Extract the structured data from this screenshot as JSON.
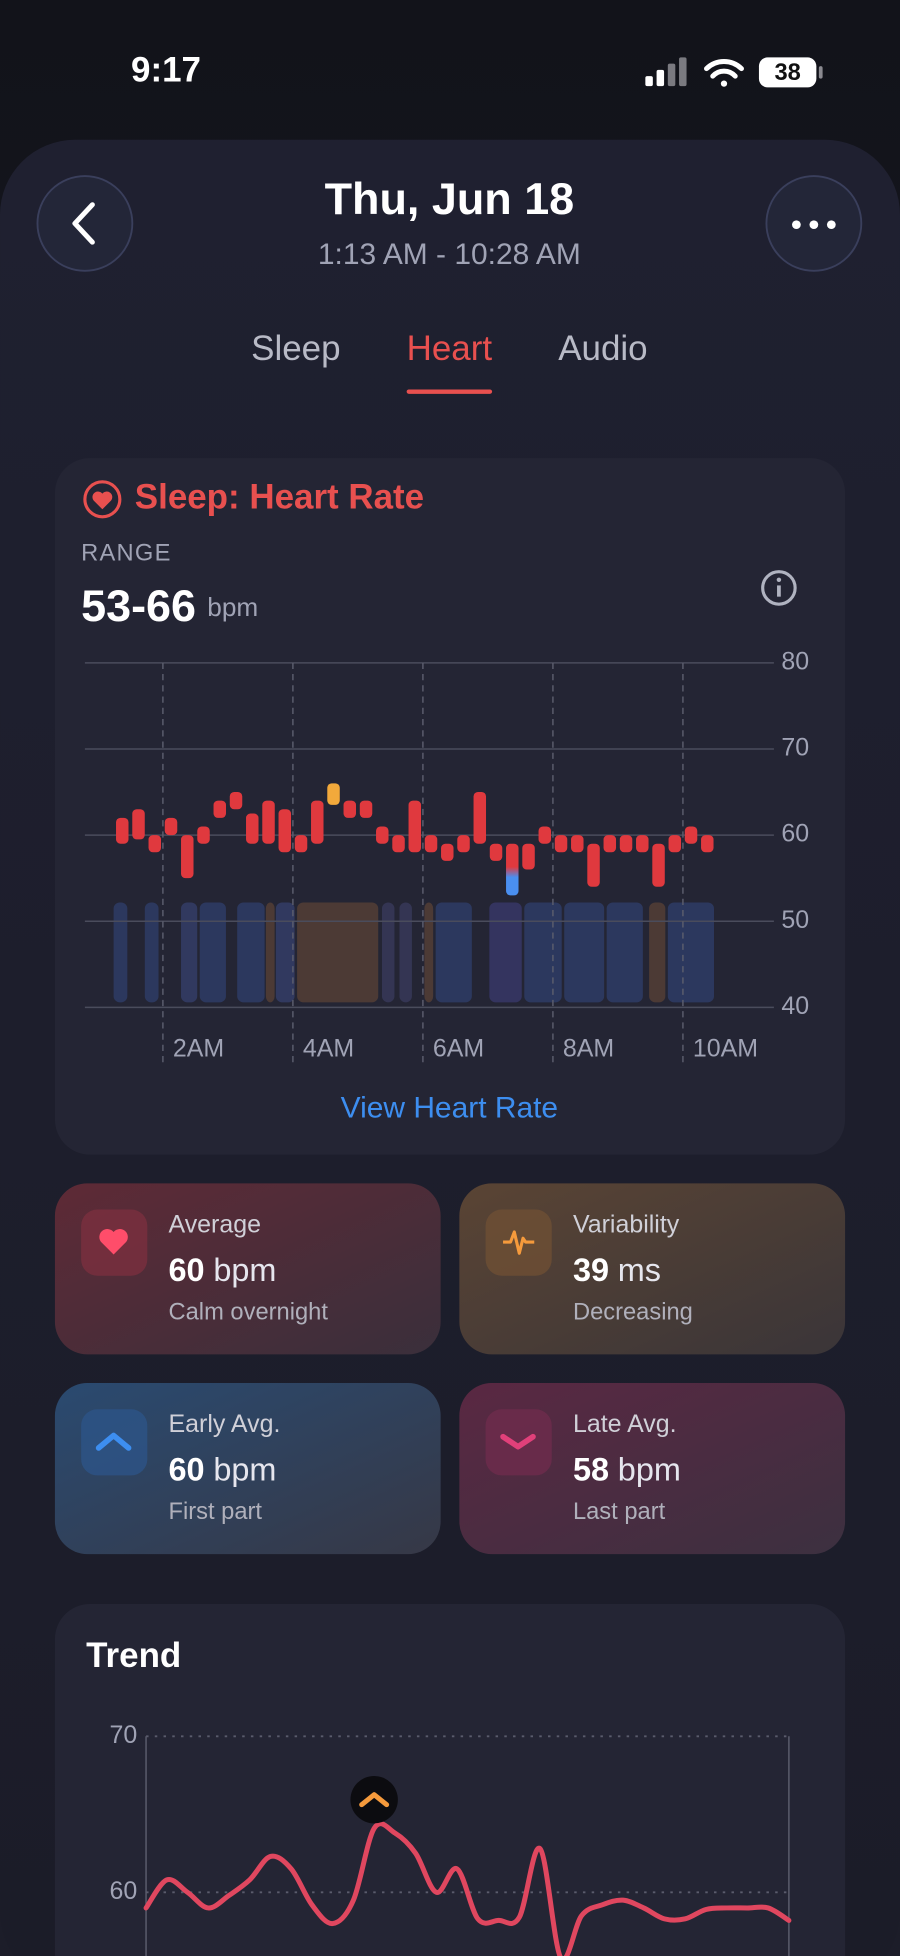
{
  "status_bar": {
    "time": "9:17",
    "battery": "38"
  },
  "header": {
    "title": "Thu, Jun 18",
    "subtitle": "1:13 AM - 10:28 AM"
  },
  "tabs": {
    "items": [
      "Sleep",
      "Heart",
      "Audio"
    ],
    "active": 1
  },
  "heart_card": {
    "title": "Sleep: Heart Rate",
    "range_label": "RANGE",
    "range_value": "53-66",
    "range_unit": "bpm",
    "link": "View Heart Rate"
  },
  "stats": [
    {
      "title": "Average",
      "value": 60,
      "unit": "bpm",
      "note": "Calm overnight"
    },
    {
      "title": "Variability",
      "value": 39,
      "unit": "ms",
      "note": "Decreasing"
    },
    {
      "title": "Early Avg.",
      "value": 60,
      "unit": "bpm",
      "note": "First part"
    },
    {
      "title": "Late Avg.",
      "value": 58,
      "unit": "bpm",
      "note": "Last part"
    }
  ],
  "chart_data": [
    {
      "type": "range_bar",
      "x": [
        1.375,
        1.625,
        1.875,
        2.125,
        2.375,
        2.625,
        2.875,
        3.125,
        3.375,
        3.625,
        3.875,
        4.125,
        4.375,
        4.625,
        4.875,
        5.125,
        5.375,
        5.625,
        5.875,
        6.125,
        6.375,
        6.625,
        6.875,
        7.125,
        7.375,
        7.625,
        7.875,
        8.125,
        8.375,
        8.625,
        8.875,
        9.125,
        9.375,
        9.625,
        9.875,
        10.125,
        10.375
      ],
      "high": [
        62,
        63,
        60,
        62,
        60,
        61,
        64,
        65,
        62.5,
        64,
        63,
        60,
        64,
        66,
        64,
        64,
        61,
        60,
        64,
        60,
        59,
        60,
        65,
        59,
        59,
        59,
        61,
        60,
        60,
        59,
        60,
        60,
        60,
        59,
        60,
        61,
        60
      ],
      "low": [
        59,
        59.5,
        58,
        60,
        55,
        59,
        62,
        63,
        59,
        59,
        58,
        58,
        59,
        63.5,
        62,
        62,
        59,
        58,
        58,
        58,
        57,
        58,
        59,
        57,
        53,
        56,
        59,
        58,
        58,
        54,
        58,
        58,
        58,
        54,
        58,
        59,
        58
      ],
      "color": "#e0393e",
      "max_color": "#f2a93b",
      "min_color": "#4a8ff0",
      "xlim": [
        0.8,
        11.4
      ],
      "xticks": [
        {
          "value": 2,
          "label": "2AM"
        },
        {
          "value": 4,
          "label": "4AM"
        },
        {
          "value": 6,
          "label": "6AM"
        },
        {
          "value": 8,
          "label": "8AM"
        },
        {
          "value": 10,
          "label": "10AM"
        }
      ],
      "ylim": [
        40,
        80
      ],
      "yticks": [
        40,
        50,
        60,
        70,
        80
      ],
      "grid": true
    },
    {
      "type": "line",
      "title": "Trend",
      "values": [
        59.0,
        60.8,
        60.0,
        59.0,
        59.8,
        60.8,
        62.3,
        61.5,
        59.2,
        58.0,
        59.5,
        64.1,
        63.8,
        62.5,
        60.0,
        61.5,
        58.3,
        58.2,
        58.4,
        62.8,
        55.8,
        58.5,
        59.2,
        59.5,
        59.0,
        58.3,
        58.3,
        58.9,
        59.0,
        59.0,
        59.0,
        58.2
      ],
      "color": "#e0475f",
      "ylim": [
        56,
        70
      ],
      "yticks": [
        60,
        70
      ],
      "grid": true
    }
  ]
}
